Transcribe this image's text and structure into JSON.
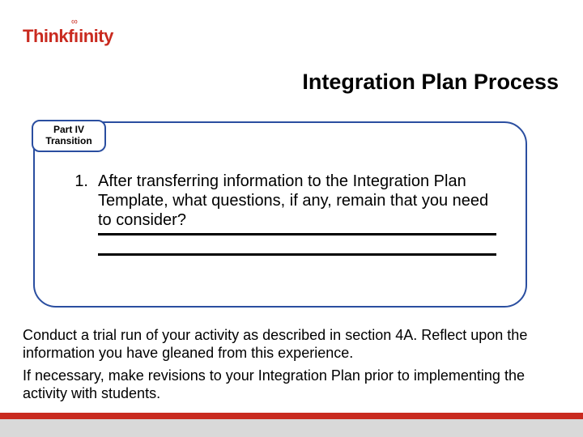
{
  "logo": {
    "think": "Think",
    "f": "f",
    "inity": "inity",
    "infinity": "∞",
    "color": "#c92a1f",
    "font_size": 22,
    "font_weight": "bold"
  },
  "title": {
    "text": "Integration Plan Process",
    "color": "#000000",
    "font_size": 27,
    "font_weight": "bold"
  },
  "callout": {
    "border_color": "#2a4ea0",
    "border_width": 2,
    "tab": {
      "line1": "Part IV",
      "line2": "Transition",
      "border_color": "#2a4ea0",
      "border_width": 2,
      "font_size": 12,
      "font_weight": "bold",
      "color": "#000000"
    },
    "question": {
      "number": "1.",
      "text": "After transferring information to the Integration Plan Template, what questions, if any, remain that you need to consider?",
      "font_size": 20,
      "color": "#000000",
      "line_height": 1.2
    }
  },
  "paragraph1": {
    "text": "Conduct a trial run of your activity as described in section 4A. Reflect upon the information you have gleaned from this experience.",
    "font_size": 18,
    "color": "#000000",
    "line_height": 1.2
  },
  "paragraph2": {
    "text": "If necessary, make revisions to your Integration Plan prior to implementing the activity with students.",
    "font_size": 18,
    "color": "#000000",
    "line_height": 1.2
  },
  "footer": {
    "bar_color": "#c92a1f",
    "gray_color": "#d9d9d9"
  }
}
